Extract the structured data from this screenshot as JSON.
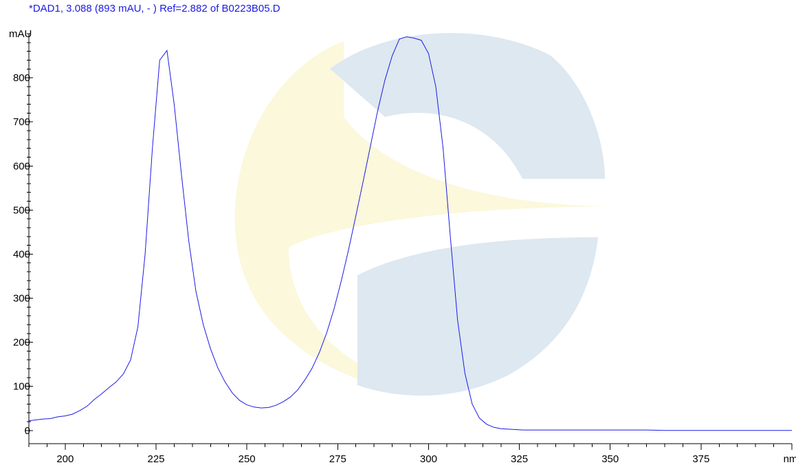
{
  "chart_data": {
    "type": "line",
    "title": "*DAD1, 3.088 (893 mAU, - ) Ref=2.882 of B0223B05.D",
    "ylabel": "mAU",
    "xlabel": "nm",
    "xlim": [
      190,
      400
    ],
    "ylim": [
      -30,
      900
    ],
    "x_ticks": [
      200,
      225,
      250,
      275,
      300,
      325,
      350,
      375
    ],
    "y_ticks": [
      0,
      100,
      200,
      300,
      400,
      500,
      600,
      700,
      800
    ],
    "x_minor_step": 5,
    "y_minor_step": 20,
    "grid": false,
    "colors": {
      "trace": "#1a1ae6",
      "title": "#1a1ae6",
      "axis": "#000000",
      "watermark_blue": "#dde8f1",
      "watermark_yellow": "#fbf8dc"
    },
    "series": [
      {
        "x": [
          190,
          192,
          194,
          196,
          198,
          200,
          202,
          204,
          206,
          208,
          210,
          212,
          214,
          216,
          218,
          220,
          222,
          224,
          226,
          228,
          230,
          232,
          234,
          236,
          238,
          240,
          242,
          244,
          246,
          248,
          250,
          252,
          254,
          256,
          258,
          260,
          262,
          264,
          266,
          268,
          270,
          272,
          274,
          276,
          278,
          280,
          282,
          284,
          286,
          288,
          290,
          292,
          294,
          296,
          298,
          300,
          302,
          304,
          306,
          308,
          310,
          312,
          314,
          316,
          318,
          320,
          322,
          324,
          326,
          328,
          330,
          335,
          340,
          345,
          350,
          355,
          360,
          365,
          370,
          375,
          380,
          385,
          390,
          395,
          400
        ],
        "values": [
          22,
          24,
          26,
          27,
          31,
          33,
          37,
          45,
          55,
          70,
          83,
          97,
          110,
          128,
          160,
          235,
          400,
          640,
          840,
          862,
          740,
          580,
          430,
          315,
          240,
          185,
          142,
          110,
          85,
          68,
          58,
          53,
          51,
          52,
          57,
          65,
          76,
          92,
          115,
          142,
          178,
          222,
          276,
          340,
          410,
          487,
          565,
          645,
          725,
          795,
          850,
          888,
          893,
          890,
          885,
          855,
          780,
          640,
          440,
          250,
          130,
          60,
          28,
          14,
          7,
          4,
          3,
          2,
          1,
          1,
          1,
          1,
          1,
          1,
          1,
          1,
          1,
          0,
          0,
          0,
          0,
          0,
          0,
          0,
          0
        ]
      }
    ]
  }
}
